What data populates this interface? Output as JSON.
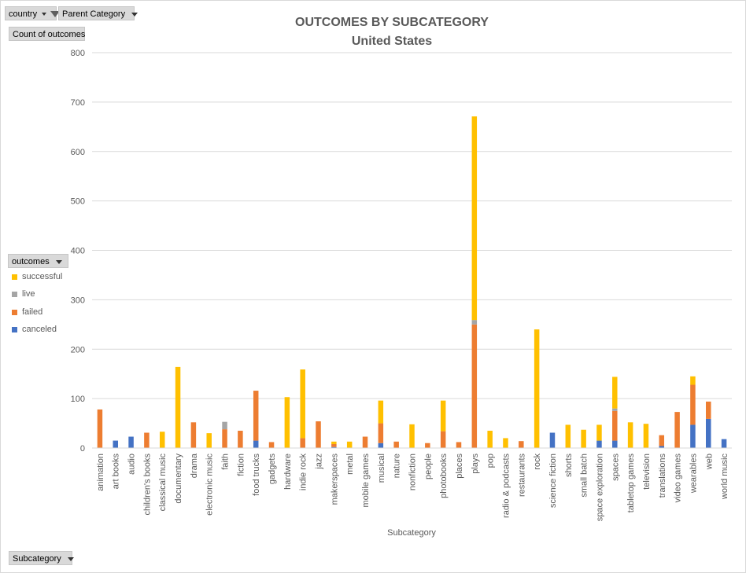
{
  "filters": {
    "country_label": "country",
    "parent_category_label": "Parent Category",
    "value_field_label": "Count of outcomes",
    "legend_field_label": "outcomes",
    "axis_field_label": "Subcategory"
  },
  "colors": {
    "successful": "#ffc000",
    "live": "#a5a5a5",
    "failed": "#ed7d31",
    "canceled": "#4472c4",
    "gridline": "#d9d9d9",
    "text": "#595959"
  },
  "chart_data": {
    "type": "bar",
    "stacked": true,
    "title": "OUTCOMES BY SUBCATEGORY",
    "subtitle": "United States",
    "xlabel": "Subcategory",
    "ylabel": "",
    "ylim": [
      0,
      800
    ],
    "yticks": [
      0,
      100,
      200,
      300,
      400,
      500,
      600,
      700,
      800
    ],
    "grid": true,
    "legend_position": "left",
    "categories": [
      "animation",
      "art books",
      "audio",
      "children's books",
      "classical music",
      "documentary",
      "drama",
      "electronic music",
      "faith",
      "fiction",
      "food trucks",
      "gadgets",
      "hardware",
      "indie rock",
      "jazz",
      "makerspaces",
      "metal",
      "mobile games",
      "musical",
      "nature",
      "nonfiction",
      "people",
      "photobooks",
      "places",
      "plays",
      "pop",
      "radio & podcasts",
      "restaurants",
      "rock",
      "science fiction",
      "shorts",
      "small batch",
      "space exploration",
      "spaces",
      "tabletop games",
      "television",
      "translations",
      "video games",
      "wearables",
      "web",
      "world music"
    ],
    "series": [
      {
        "name": "canceled",
        "values": [
          0,
          15,
          23,
          0,
          0,
          0,
          0,
          0,
          0,
          0,
          15,
          0,
          0,
          0,
          0,
          2,
          0,
          0,
          10,
          0,
          0,
          0,
          0,
          0,
          0,
          0,
          0,
          0,
          0,
          31,
          0,
          0,
          15,
          15,
          0,
          0,
          4,
          0,
          47,
          59,
          18
        ]
      },
      {
        "name": "failed",
        "values": [
          78,
          0,
          0,
          31,
          0,
          0,
          52,
          0,
          38,
          35,
          101,
          12,
          0,
          20,
          54,
          6,
          0,
          23,
          40,
          13,
          0,
          10,
          34,
          12,
          250,
          0,
          0,
          14,
          0,
          0,
          0,
          0,
          0,
          60,
          0,
          0,
          22,
          73,
          81,
          35,
          0
        ]
      },
      {
        "name": "live",
        "values": [
          0,
          0,
          0,
          0,
          0,
          0,
          0,
          0,
          15,
          0,
          0,
          0,
          0,
          0,
          0,
          0,
          0,
          0,
          0,
          0,
          0,
          0,
          0,
          0,
          9,
          0,
          0,
          0,
          0,
          0,
          0,
          0,
          0,
          5,
          0,
          0,
          0,
          0,
          0,
          0,
          0
        ]
      },
      {
        "name": "successful",
        "values": [
          0,
          0,
          0,
          0,
          33,
          164,
          0,
          30,
          0,
          0,
          0,
          0,
          103,
          139,
          0,
          5,
          13,
          0,
          46,
          0,
          48,
          0,
          62,
          0,
          412,
          35,
          20,
          0,
          240,
          0,
          47,
          37,
          32,
          64,
          52,
          49,
          0,
          0,
          17,
          0,
          0
        ]
      }
    ]
  }
}
